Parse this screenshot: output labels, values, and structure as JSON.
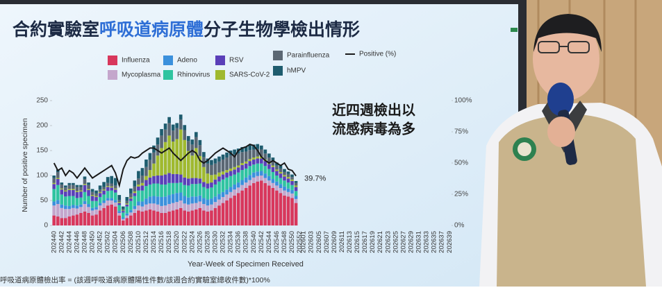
{
  "chart_data": {
    "type": "bar",
    "stacked": true,
    "title": [
      "合約實驗室",
      "呼吸道病原體",
      "分子生物學檢出情形"
    ],
    "callout": [
      "近四週檢出以",
      "流感病毒為多"
    ],
    "footnote": "呼吸道病原體檢出率 = (該週呼吸道病原體陽性件數/該週合約實驗室總收件數)*100%",
    "xlabel": "Year-Week of Specimen Received",
    "ylabel": "Number of positive specimen",
    "ylim": [
      0,
      250
    ],
    "yticks": [
      0,
      50,
      100,
      150,
      200,
      250
    ],
    "y2lim": [
      0,
      100
    ],
    "y2ticks": [
      {
        "value": 0,
        "label": "0%"
      },
      {
        "value": 25,
        "label": "25%"
      },
      {
        "value": 50,
        "label": "50%"
      },
      {
        "value": 75,
        "label": "75%"
      },
      {
        "value": 100,
        "label": "100%"
      }
    ],
    "categories": [
      "202440",
      null,
      "202442",
      null,
      "202444",
      null,
      "202446",
      null,
      "202448",
      null,
      "202450",
      null,
      "202452",
      null,
      "202502",
      null,
      "202504",
      null,
      "202506",
      null,
      "202508",
      null,
      "202510",
      null,
      "202512",
      null,
      "202514",
      null,
      "202516",
      null,
      "202518",
      null,
      "202520",
      null,
      "202522",
      null,
      "202524",
      null,
      "202526",
      null,
      "202528",
      null,
      "202530",
      null,
      "202532",
      null,
      "202534",
      null,
      "202536",
      null,
      "202538",
      null,
      "202540",
      null,
      "202542",
      null,
      "202544",
      null,
      "202546",
      null,
      "202548",
      null,
      "202550",
      null,
      "202552",
      "202601",
      null,
      "202603",
      null,
      "202605",
      null,
      "202607",
      null,
      "202609",
      null,
      "202611",
      null,
      "202613",
      null,
      "202615",
      null,
      "202617",
      null,
      "202619",
      null,
      "202621",
      null,
      "202623",
      null,
      "202625",
      null,
      "202627",
      null,
      "202629",
      null,
      "202631",
      null,
      "202633",
      null,
      "202635",
      null,
      "202637",
      null,
      "202639"
    ],
    "series": [
      {
        "name": "Influenza",
        "color": "#d8375c",
        "values": [
          20,
          18,
          15,
          15,
          18,
          20,
          22,
          25,
          28,
          25,
          20,
          22,
          30,
          35,
          40,
          42,
          38,
          20,
          10,
          15,
          20,
          25,
          30,
          28,
          30,
          32,
          30,
          28,
          25,
          25,
          28,
          30,
          32,
          35,
          30,
          28,
          30,
          32,
          35,
          30,
          28,
          30,
          35,
          40,
          45,
          50,
          55,
          60,
          65,
          70,
          75,
          80,
          85,
          88,
          90,
          85,
          80,
          75,
          70,
          65,
          60,
          58,
          55,
          45,
          null,
          null,
          null,
          null,
          null,
          null,
          null,
          null,
          null,
          null,
          null,
          null,
          null,
          null,
          null,
          null,
          null,
          null,
          null,
          null,
          null,
          null,
          null,
          null,
          null,
          null,
          null,
          null,
          null,
          null,
          null,
          null,
          null,
          null,
          null,
          null,
          null,
          null,
          null,
          null
        ]
      },
      {
        "name": "Mycoplasma",
        "color": "#c4a6cc",
        "values": [
          20,
          25,
          20,
          18,
          15,
          15,
          12,
          12,
          15,
          12,
          10,
          10,
          10,
          10,
          10,
          8,
          8,
          5,
          3,
          5,
          6,
          8,
          10,
          10,
          12,
          12,
          14,
          14,
          14,
          15,
          15,
          15,
          15,
          15,
          14,
          14,
          14,
          13,
          13,
          13,
          12,
          12,
          12,
          12,
          12,
          12,
          12,
          12,
          11,
          11,
          11,
          11,
          11,
          11,
          10,
          10,
          10,
          10,
          10,
          10,
          10,
          9,
          9,
          8,
          null,
          null,
          null,
          null,
          null,
          null,
          null,
          null,
          null,
          null,
          null,
          null,
          null,
          null,
          null,
          null,
          null,
          null,
          null,
          null,
          null,
          null,
          null,
          null,
          null,
          null,
          null,
          null,
          null,
          null,
          null,
          null,
          null,
          null,
          null,
          null,
          null,
          null,
          null,
          null
        ]
      },
      {
        "name": "Adeno",
        "color": "#3b90dc",
        "values": [
          8,
          8,
          7,
          7,
          6,
          6,
          6,
          5,
          6,
          6,
          5,
          5,
          5,
          5,
          5,
          5,
          5,
          4,
          3,
          4,
          5,
          6,
          8,
          10,
          12,
          14,
          15,
          16,
          18,
          18,
          18,
          18,
          18,
          16,
          15,
          14,
          14,
          13,
          12,
          12,
          12,
          12,
          11,
          11,
          10,
          10,
          10,
          10,
          10,
          10,
          10,
          10,
          10,
          9,
          9,
          9,
          9,
          8,
          8,
          8,
          8,
          7,
          7,
          6,
          null,
          null,
          null,
          null,
          null,
          null,
          null,
          null,
          null,
          null,
          null,
          null,
          null,
          null,
          null,
          null,
          null,
          null,
          null,
          null,
          null,
          null,
          null,
          null,
          null,
          null,
          null,
          null,
          null,
          null,
          null,
          null,
          null,
          null,
          null,
          null,
          null,
          null,
          null,
          null
        ]
      },
      {
        "name": "Rhinovirus",
        "color": "#2fc4a0",
        "values": [
          25,
          30,
          20,
          18,
          20,
          18,
          15,
          14,
          18,
          16,
          14,
          12,
          12,
          12,
          14,
          15,
          15,
          12,
          10,
          14,
          18,
          20,
          22,
          22,
          25,
          24,
          25,
          26,
          25,
          24,
          24,
          22,
          20,
          20,
          22,
          24,
          25,
          25,
          24,
          22,
          22,
          22,
          24,
          25,
          25,
          24,
          22,
          20,
          20,
          20,
          18,
          18,
          16,
          16,
          15,
          15,
          14,
          14,
          12,
          12,
          12,
          12,
          10,
          10,
          null,
          null,
          null,
          null,
          null,
          null,
          null,
          null,
          null,
          null,
          null,
          null,
          null,
          null,
          null,
          null,
          null,
          null,
          null,
          null,
          null,
          null,
          null,
          null,
          null,
          null,
          null,
          null,
          null,
          null,
          null,
          null,
          null,
          null,
          null,
          null,
          null,
          null,
          null,
          null
        ]
      },
      {
        "name": "RSV",
        "color": "#5a3fb8",
        "values": [
          10,
          12,
          10,
          10,
          12,
          12,
          12,
          12,
          14,
          12,
          10,
          8,
          8,
          8,
          8,
          6,
          6,
          4,
          3,
          4,
          5,
          6,
          8,
          10,
          12,
          14,
          15,
          16,
          18,
          20,
          20,
          18,
          18,
          16,
          15,
          14,
          12,
          12,
          10,
          10,
          10,
          10,
          10,
          10,
          10,
          10,
          10,
          10,
          10,
          10,
          10,
          10,
          10,
          10,
          10,
          10,
          10,
          10,
          9,
          9,
          8,
          8,
          8,
          8,
          null,
          null,
          null,
          null,
          null,
          null,
          null,
          null,
          null,
          null,
          null,
          null,
          null,
          null,
          null,
          null,
          null,
          null,
          null,
          null,
          null,
          null,
          null,
          null,
          null,
          null,
          null,
          null,
          null,
          null,
          null,
          null,
          null,
          null,
          null,
          null,
          null,
          null,
          null,
          null
        ]
      },
      {
        "name": "SARS-CoV-2",
        "color": "#a0b92f",
        "values": [
          2,
          2,
          2,
          2,
          2,
          2,
          2,
          2,
          2,
          2,
          2,
          2,
          2,
          2,
          2,
          2,
          2,
          2,
          1,
          2,
          2,
          3,
          4,
          5,
          8,
          15,
          25,
          40,
          55,
          65,
          75,
          65,
          70,
          90,
          75,
          55,
          45,
          60,
          45,
          30,
          20,
          15,
          10,
          8,
          6,
          5,
          5,
          5,
          4,
          4,
          4,
          4,
          4,
          4,
          4,
          3,
          3,
          3,
          3,
          3,
          3,
          3,
          3,
          3,
          null,
          null,
          null,
          null,
          null,
          null,
          null,
          null,
          null,
          null,
          null,
          null,
          null,
          null,
          null,
          null,
          null,
          null,
          null,
          null,
          null,
          null,
          null,
          null,
          null,
          null,
          null,
          null,
          null,
          null,
          null,
          null,
          null,
          null,
          null,
          null,
          null,
          null,
          null,
          null
        ]
      },
      {
        "name": "Parainfluenza",
        "color": "#5b6773",
        "values": [
          10,
          12,
          8,
          6,
          8,
          8,
          8,
          7,
          10,
          8,
          6,
          5,
          5,
          5,
          6,
          6,
          6,
          4,
          3,
          5,
          8,
          10,
          12,
          15,
          18,
          20,
          22,
          22,
          25,
          25,
          25,
          22,
          22,
          20,
          20,
          20,
          22,
          22,
          22,
          20,
          20,
          20,
          22,
          22,
          24,
          25,
          26,
          25,
          24,
          22,
          20,
          18,
          16,
          15,
          14,
          12,
          10,
          8,
          8,
          7,
          6,
          6,
          5,
          5,
          null,
          null,
          null,
          null,
          null,
          null,
          null,
          null,
          null,
          null,
          null,
          null,
          null,
          null,
          null,
          null,
          null,
          null,
          null,
          null,
          null,
          null,
          null,
          null,
          null,
          null,
          null,
          null,
          null,
          null,
          null,
          null,
          null,
          null,
          null,
          null,
          null,
          null,
          null,
          null
        ]
      },
      {
        "name": "hMPV",
        "color": "#1e5c6e",
        "values": [
          5,
          5,
          4,
          4,
          4,
          4,
          4,
          4,
          5,
          5,
          6,
          6,
          8,
          10,
          12,
          15,
          15,
          10,
          5,
          8,
          10,
          12,
          15,
          15,
          15,
          14,
          14,
          14,
          13,
          12,
          12,
          12,
          10,
          10,
          10,
          10,
          10,
          10,
          10,
          10,
          10,
          10,
          10,
          10,
          10,
          10,
          10,
          10,
          10,
          10,
          10,
          10,
          10,
          10,
          8,
          8,
          8,
          8,
          6,
          6,
          6,
          5,
          5,
          4,
          null,
          null,
          null,
          null,
          null,
          null,
          null,
          null,
          null,
          null,
          null,
          null,
          null,
          null,
          null,
          null,
          null,
          null,
          null,
          null,
          null,
          null,
          null,
          null,
          null,
          null,
          null,
          null,
          null,
          null,
          null,
          null,
          null,
          null,
          null,
          null,
          null,
          null,
          null,
          null
        ]
      },
      {
        "name": "Positive (%)",
        "type": "line",
        "axis": "y2",
        "color": "#1a1a1a",
        "values": [
          50,
          44,
          46,
          40,
          44,
          42,
          38,
          42,
          46,
          42,
          38,
          40,
          42,
          44,
          46,
          48,
          42,
          32,
          45,
          52,
          55,
          54,
          55,
          58,
          60,
          62,
          62,
          60,
          58,
          60,
          62,
          58,
          55,
          52,
          55,
          58,
          60,
          58,
          52,
          50,
          52,
          55,
          58,
          60,
          62,
          60,
          58,
          55,
          60,
          62,
          63,
          65,
          64,
          60,
          55,
          52,
          50,
          52,
          50,
          48,
          50,
          45,
          44,
          39.7,
          null,
          null,
          null,
          null,
          null,
          null,
          null,
          null,
          null,
          null,
          null,
          null,
          null,
          null,
          null,
          null,
          null,
          null,
          null,
          null,
          null,
          null,
          null,
          null,
          null,
          null,
          null,
          null,
          null,
          null,
          null,
          null,
          null,
          null,
          null,
          null,
          null,
          null,
          null,
          null
        ],
        "value_labels": [
          null,
          null,
          null,
          null,
          null,
          null,
          null,
          null,
          null,
          null,
          null,
          null,
          null,
          null,
          null,
          null,
          null,
          null,
          null,
          null,
          null,
          null,
          null,
          null,
          null,
          null,
          null,
          null,
          null,
          null,
          null,
          null,
          null,
          null,
          null,
          null,
          null,
          null,
          null,
          null,
          null,
          null,
          null,
          null,
          null,
          null,
          null,
          null,
          null,
          null,
          null,
          null,
          null,
          null,
          null,
          null,
          null,
          null,
          null,
          null,
          null,
          null,
          null,
          "39.7%",
          null,
          null,
          null,
          null,
          null,
          null,
          null,
          null,
          null,
          null,
          null,
          null,
          null,
          null,
          null,
          null,
          null,
          null,
          null,
          null,
          null,
          null,
          null,
          null,
          null,
          null,
          null,
          null,
          null,
          null,
          null,
          null,
          null,
          null,
          null,
          null,
          null,
          null,
          null,
          null
        ]
      }
    ]
  }
}
